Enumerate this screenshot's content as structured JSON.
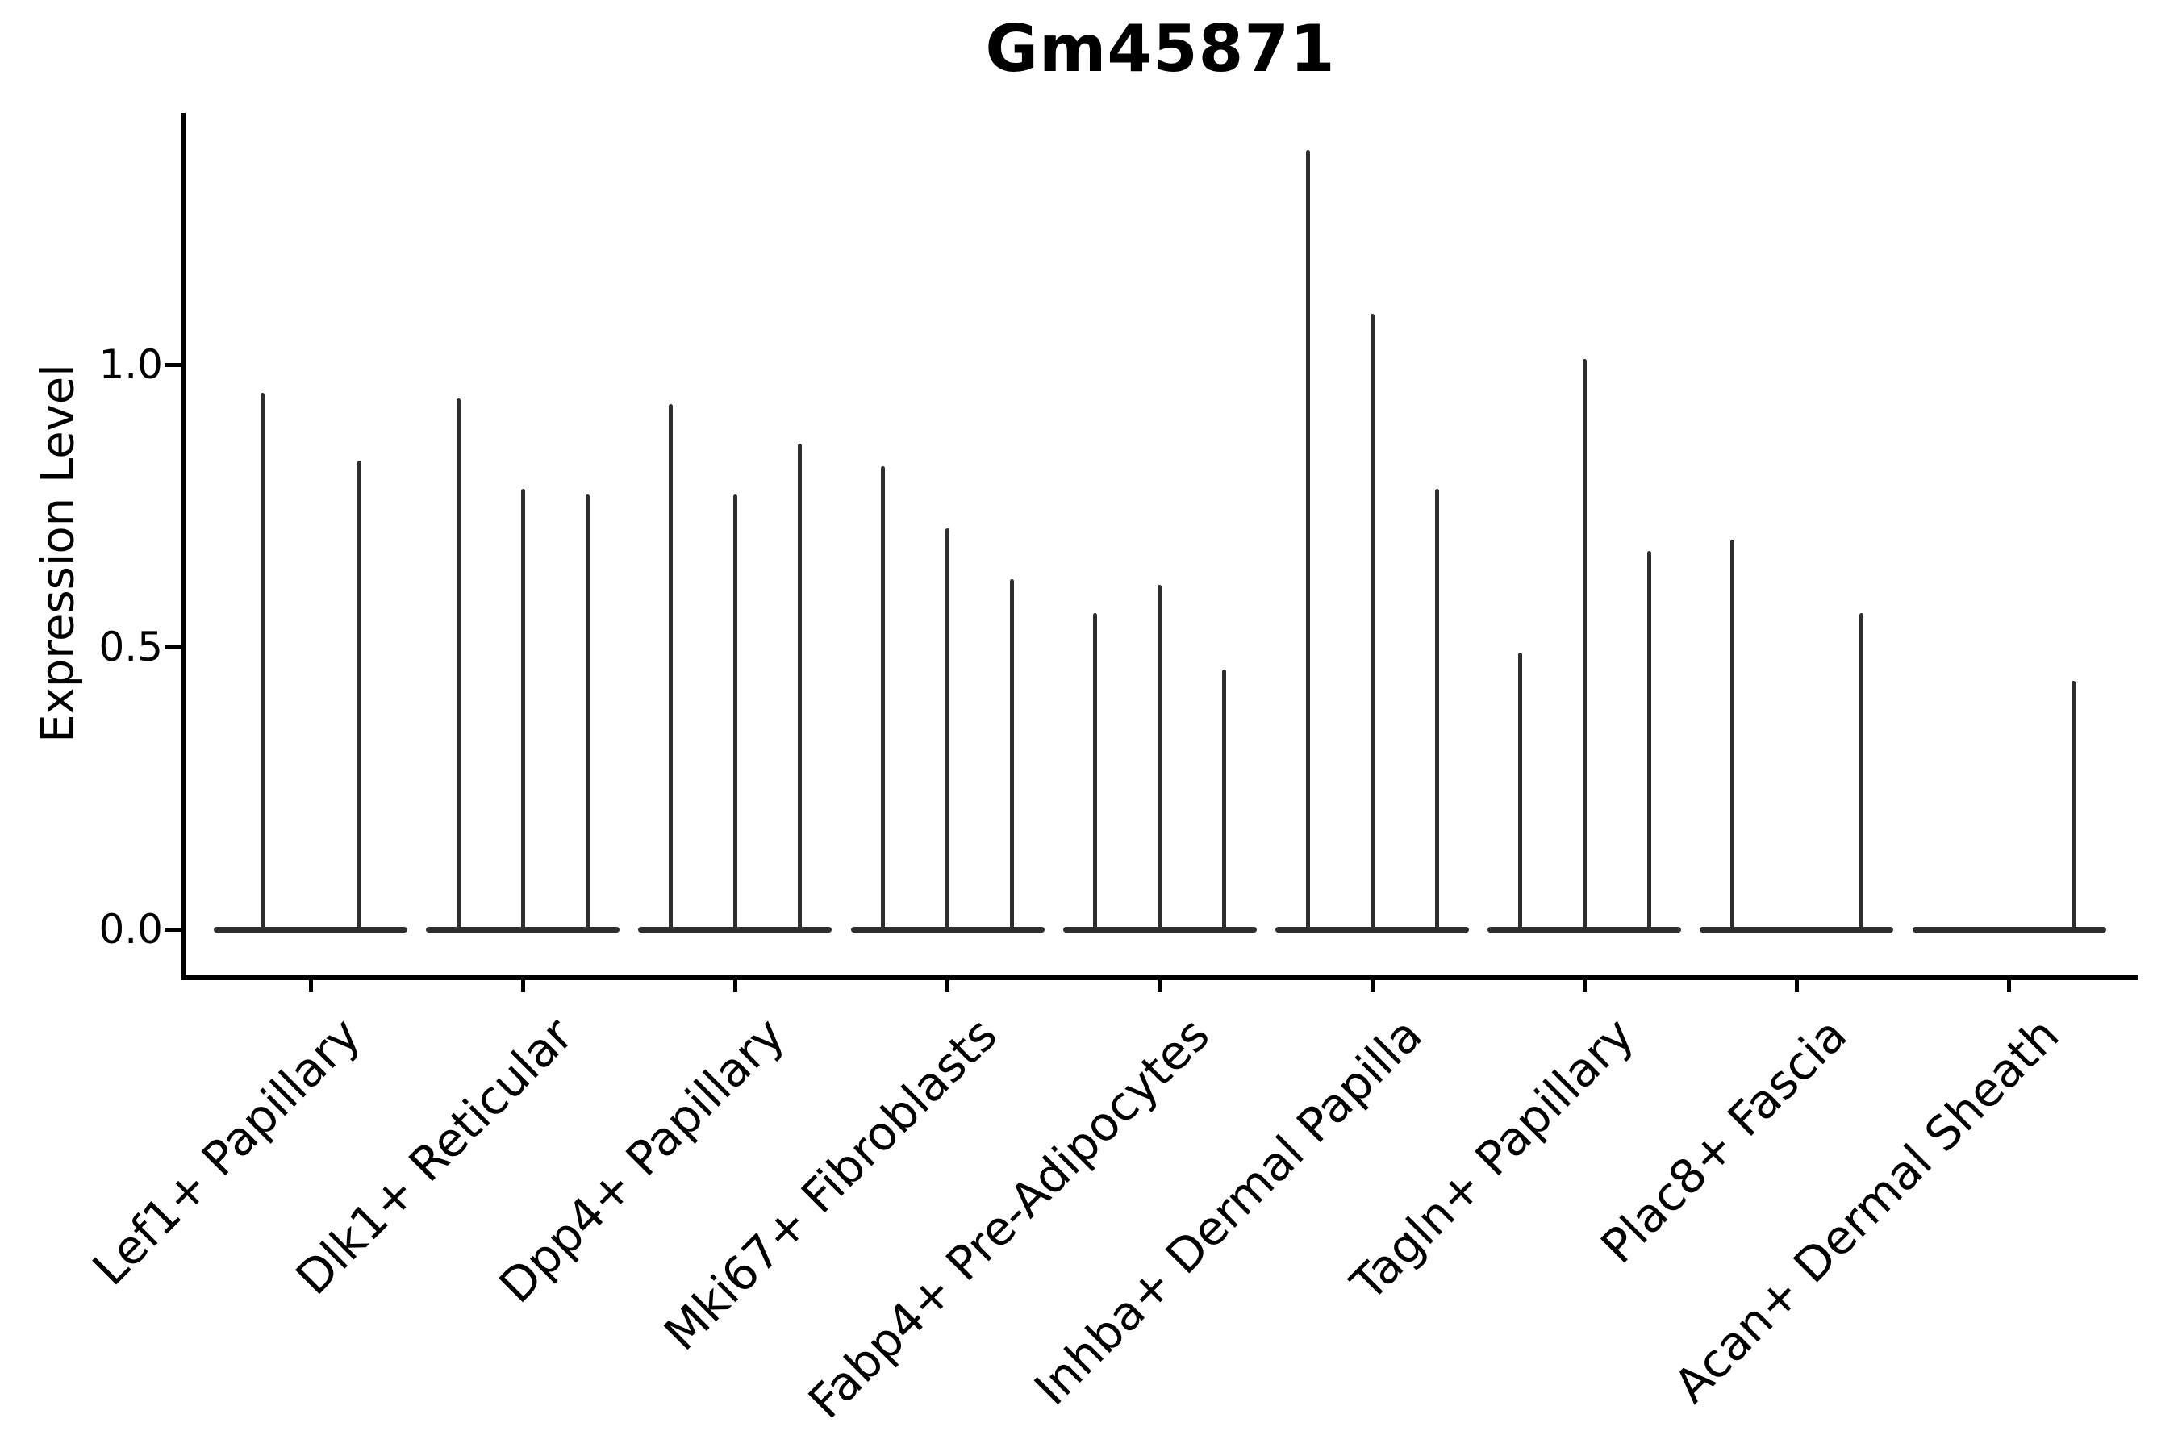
{
  "chart_data": {
    "type": "violin",
    "title": "Gm45871",
    "xlabel": "",
    "ylabel": "Expression Level",
    "yticks": [
      "0.0",
      "0.5",
      "1.0"
    ],
    "ytick_values": [
      0.0,
      0.5,
      1.0
    ],
    "ylim": [
      -0.09,
      1.45
    ],
    "grid": false,
    "legend": "none",
    "description": "Grouped violin plot of expression level per fibroblast subtype; each group contains 2-3 extremely thin violins (collapsed to a flat base line at 0 with a thin density spike up to the max expression). Values below are the peak (top) expression of each violin; 0 means a flat violin with no spike.",
    "categories": [
      "Lef1+ Papillary",
      "Dlk1+ Reticular",
      "Dpp4+ Papillary",
      "Mki67+ Fibroblasts",
      "Fabp4+ Pre-Adipocytes",
      "Inhba+ Dermal Papilla",
      "Tagln+ Papillary",
      "Plac8+ Fascia",
      "Acan+ Dermal Sheath"
    ],
    "series": [
      {
        "name": "Lef1+ Papillary",
        "violin_peaks": [
          0.95,
          0.83
        ]
      },
      {
        "name": "Dlk1+ Reticular",
        "violin_peaks": [
          0.94,
          0.78,
          0.77
        ]
      },
      {
        "name": "Dpp4+ Papillary",
        "violin_peaks": [
          0.93,
          0.77,
          0.86
        ]
      },
      {
        "name": "Mki67+ Fibroblasts",
        "violin_peaks": [
          0.82,
          0.71,
          0.62
        ]
      },
      {
        "name": "Fabp4+ Pre-Adipocytes",
        "violin_peaks": [
          0.56,
          0.61,
          0.46
        ]
      },
      {
        "name": "Inhba+ Dermal Papilla",
        "violin_peaks": [
          1.38,
          1.09,
          0.78
        ]
      },
      {
        "name": "Tagln+ Papillary",
        "violin_peaks": [
          0.49,
          1.01,
          0.67
        ]
      },
      {
        "name": "Plac8+ Fascia",
        "violin_peaks": [
          0.69,
          0.0,
          0.56
        ]
      },
      {
        "name": "Acan+ Dermal Sheath",
        "violin_peaks": [
          0.0,
          0.0,
          0.44
        ]
      }
    ],
    "colors": {
      "background": "#ffffff",
      "spine": "#000000",
      "violin": "#2e2e2e",
      "text": "#000000"
    }
  }
}
